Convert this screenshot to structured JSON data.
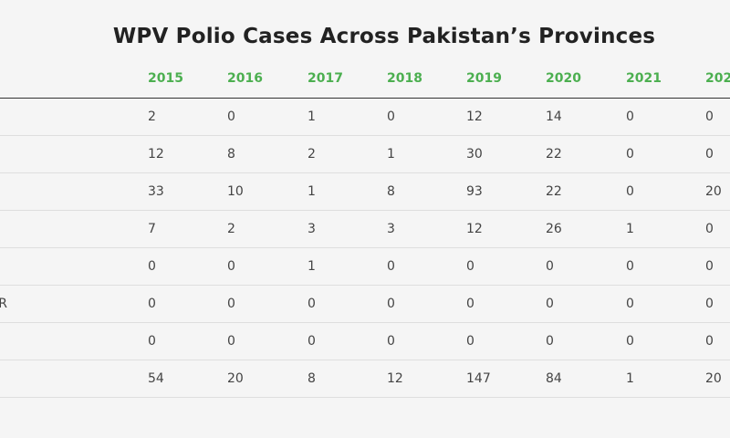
{
  "title": "WPV Polio Cases Across Pakistan’s Provinces",
  "colors": {
    "header_year": "#4caf50",
    "background": "#f5f5f5",
    "divider": "#dedede"
  },
  "table": {
    "years": [
      "2015",
      "2016",
      "2017",
      "2018",
      "2019",
      "2020",
      "2021",
      "202"
    ],
    "rows": [
      {
        "label": "",
        "values": [
          "2",
          "0",
          "1",
          "0",
          "12",
          "14",
          "0",
          "0"
        ]
      },
      {
        "label": "",
        "values": [
          "12",
          "8",
          "2",
          "1",
          "30",
          "22",
          "0",
          "0"
        ]
      },
      {
        "label": "",
        "values": [
          "33",
          "10",
          "1",
          "8",
          "93",
          "22",
          "0",
          "20"
        ]
      },
      {
        "label": "",
        "values": [
          "7",
          "2",
          "3",
          "3",
          "12",
          "26",
          "1",
          "0"
        ]
      },
      {
        "label": "",
        "values": [
          "0",
          "0",
          "1",
          "0",
          "0",
          "0",
          "0",
          "0"
        ]
      },
      {
        "label": "R",
        "values": [
          "0",
          "0",
          "0",
          "0",
          "0",
          "0",
          "0",
          "0"
        ]
      },
      {
        "label": "",
        "values": [
          "0",
          "0",
          "0",
          "0",
          "0",
          "0",
          "0",
          "0"
        ]
      },
      {
        "label": "",
        "values": [
          "54",
          "20",
          "8",
          "12",
          "147",
          "84",
          "1",
          "20"
        ]
      }
    ]
  }
}
